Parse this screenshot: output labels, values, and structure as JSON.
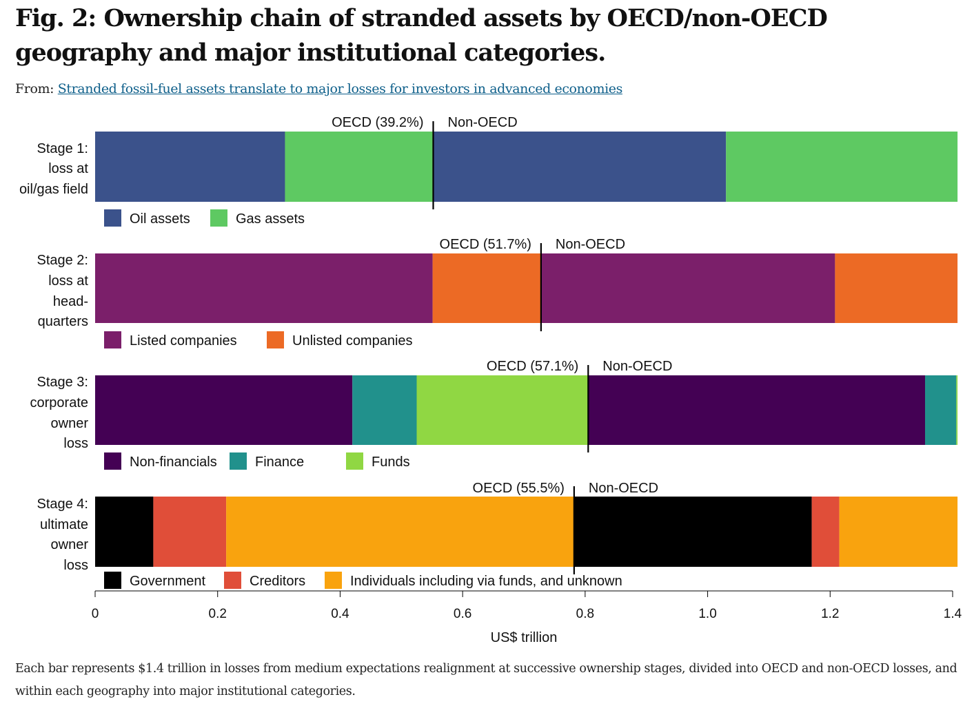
{
  "figure": {
    "title": "Fig. 2: Ownership chain of stranded assets by OECD/non-OECD geography and major institutional categories.",
    "from_label": "From:",
    "source_link": "Stranded fossil-fuel assets translate to major losses for investors in advanced economies",
    "caption": "Each bar represents $1.4 trillion in losses from medium expectations realignment at successive ownership stages, divided into OECD and non-OECD losses, and within each geography into major institutional categories."
  },
  "chart_data": {
    "type": "bar",
    "orientation": "horizontal",
    "stacked": true,
    "xlabel": "US$ trillion",
    "xlim": [
      0,
      1.4
    ],
    "xticks": [
      0,
      0.2,
      0.4,
      0.6,
      0.8,
      1.0,
      1.2,
      1.4
    ],
    "xtick_labels": [
      "0",
      "0.2",
      "0.4",
      "0.6",
      "0.8",
      "1.0",
      "1.2",
      "1.4"
    ],
    "grid": false,
    "stages": [
      {
        "label_lines": [
          "Stage 1:",
          "loss at",
          "oil/gas field"
        ],
        "oecd_label": "OECD (39.2%)",
        "non_oecd_label": "Non-OECD",
        "divider": 0.552,
        "categories": [
          {
            "name": "Oil assets",
            "color": "#3b528b"
          },
          {
            "name": "Gas assets",
            "color": "#5ec962"
          }
        ],
        "segments": [
          {
            "category": 0,
            "start": 0,
            "end": 0.31
          },
          {
            "category": 1,
            "start": 0.31,
            "end": 0.552
          },
          {
            "category": 0,
            "start": 0.552,
            "end": 1.03
          },
          {
            "category": 1,
            "start": 1.03,
            "end": 1.408
          }
        ]
      },
      {
        "label_lines": [
          "Stage 2:",
          "loss at",
          "head-",
          "quarters"
        ],
        "oecd_label": "OECD (51.7%)",
        "non_oecd_label": "Non-OECD",
        "divider": 0.728,
        "categories": [
          {
            "name": "Listed companies",
            "color": "#7b1f6a"
          },
          {
            "name": "Unlisted companies",
            "color": "#ec6a25"
          }
        ],
        "segments": [
          {
            "category": 0,
            "start": 0,
            "end": 0.551
          },
          {
            "category": 1,
            "start": 0.551,
            "end": 0.728
          },
          {
            "category": 0,
            "start": 0.728,
            "end": 1.208
          },
          {
            "category": 1,
            "start": 1.208,
            "end": 1.408
          }
        ]
      },
      {
        "label_lines": [
          "Stage 3:",
          "corporate",
          "owner",
          "loss"
        ],
        "oecd_label": "OECD (57.1%)",
        "non_oecd_label": "Non-OECD",
        "divider": 0.805,
        "categories": [
          {
            "name": "Non-financials",
            "color": "#440154"
          },
          {
            "name": "Finance",
            "color": "#21918c"
          },
          {
            "name": "Funds",
            "color": "#90d743"
          }
        ],
        "segments": [
          {
            "category": 0,
            "start": 0,
            "end": 0.42
          },
          {
            "category": 1,
            "start": 0.42,
            "end": 0.525
          },
          {
            "category": 2,
            "start": 0.525,
            "end": 0.805
          },
          {
            "category": 0,
            "start": 0.805,
            "end": 1.355
          },
          {
            "category": 1,
            "start": 1.355,
            "end": 1.406
          },
          {
            "category": 2,
            "start": 1.406,
            "end": 1.408
          }
        ]
      },
      {
        "label_lines": [
          "Stage 4:",
          "ultimate",
          "owner",
          "loss"
        ],
        "oecd_label": "OECD (55.5%)",
        "non_oecd_label": "Non-OECD",
        "divider": 0.782,
        "categories": [
          {
            "name": "Government",
            "color": "#000000"
          },
          {
            "name": "Creditors",
            "color": "#e04e39"
          },
          {
            "name": "Individuals including via funds, and unknown",
            "color": "#f9a30e"
          }
        ],
        "segments": [
          {
            "category": 0,
            "start": 0,
            "end": 0.095
          },
          {
            "category": 1,
            "start": 0.095,
            "end": 0.214
          },
          {
            "category": 2,
            "start": 0.214,
            "end": 0.782
          },
          {
            "category": 0,
            "start": 0.782,
            "end": 1.17
          },
          {
            "category": 1,
            "start": 1.17,
            "end": 1.215
          },
          {
            "category": 2,
            "start": 1.215,
            "end": 1.408
          }
        ]
      }
    ]
  }
}
